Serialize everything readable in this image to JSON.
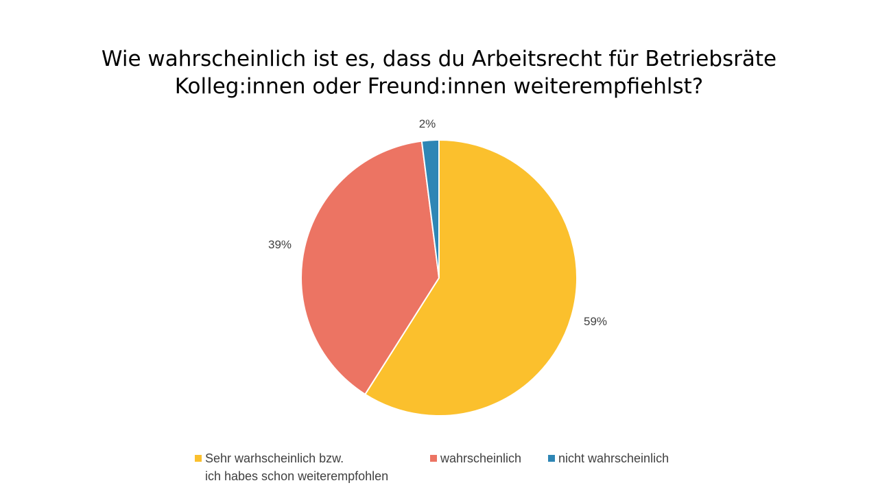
{
  "chart_data": {
    "type": "pie",
    "title_lines": [
      "Wie wahrscheinlich ist es, dass du Arbeitsrecht für Betriebsräte",
      "Kolleg:innen oder Freund:innen weiterempfiehlst?"
    ],
    "unit": "%",
    "slices": [
      {
        "label_lines": [
          "Sehr warhscheinlich bzw.",
          "ich habes schon weiterempfohlen"
        ],
        "value": 59,
        "display": "59%",
        "color": "#FBC02D"
      },
      {
        "label_lines": [
          "wahrscheinlich"
        ],
        "value": 39,
        "display": "39%",
        "color": "#EC7463"
      },
      {
        "label_lines": [
          "nicht wahrscheinlich"
        ],
        "value": 2,
        "display": "2%",
        "color": "#2E86B5"
      }
    ],
    "legend_position": "bottom"
  }
}
